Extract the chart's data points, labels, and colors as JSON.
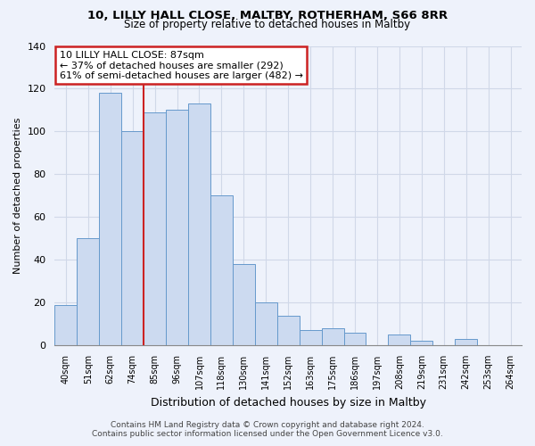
{
  "title1": "10, LILLY HALL CLOSE, MALTBY, ROTHERHAM, S66 8RR",
  "title2": "Size of property relative to detached houses in Maltby",
  "xlabel": "Distribution of detached houses by size in Maltby",
  "ylabel": "Number of detached properties",
  "bin_labels": [
    "40sqm",
    "51sqm",
    "62sqm",
    "74sqm",
    "85sqm",
    "96sqm",
    "107sqm",
    "118sqm",
    "130sqm",
    "141sqm",
    "152sqm",
    "163sqm",
    "175sqm",
    "186sqm",
    "197sqm",
    "208sqm",
    "219sqm",
    "231sqm",
    "242sqm",
    "253sqm",
    "264sqm"
  ],
  "bar_heights": [
    19,
    50,
    118,
    100,
    109,
    110,
    113,
    70,
    38,
    20,
    14,
    7,
    8,
    6,
    0,
    5,
    2,
    0,
    3,
    0,
    0
  ],
  "red_line_after_index": 3,
  "bar_color": "#ccdaf0",
  "bar_edge_color": "#6699cc",
  "annotation_text_line1": "10 LILLY HALL CLOSE: 87sqm",
  "annotation_text_line2": "← 37% of detached houses are smaller (292)",
  "annotation_text_line3": "61% of semi-detached houses are larger (482) →",
  "annotation_box_color": "#ffffff",
  "annotation_border_color": "#cc2222",
  "highlight_line_color": "#cc2222",
  "ylim": [
    0,
    140
  ],
  "yticks": [
    0,
    20,
    40,
    60,
    80,
    100,
    120,
    140
  ],
  "footer1": "Contains HM Land Registry data © Crown copyright and database right 2024.",
  "footer2": "Contains public sector information licensed under the Open Government Licence v3.0.",
  "background_color": "#eef2fb",
  "grid_color": "#d0d8e8",
  "title1_fontsize": 9.5,
  "title2_fontsize": 8.5,
  "ylabel_fontsize": 8,
  "xlabel_fontsize": 9,
  "tick_fontsize": 7,
  "footer_fontsize": 6.5,
  "annotation_fontsize": 8
}
